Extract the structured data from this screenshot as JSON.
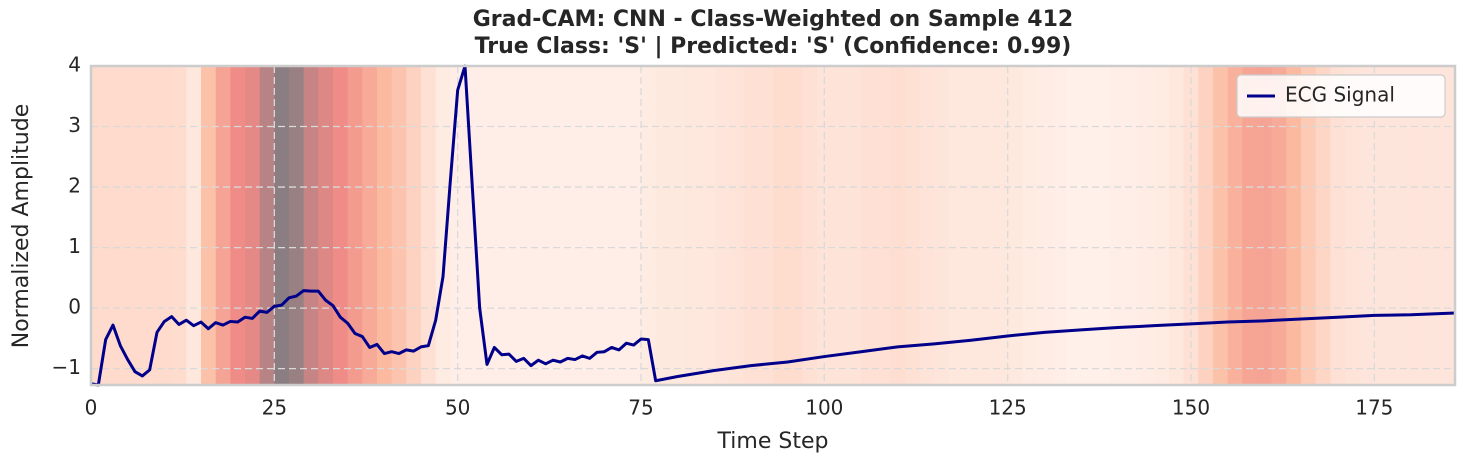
{
  "chart_data": {
    "type": "line",
    "title": "Grad-CAM: CNN - Class-Weighted on Sample 412",
    "subtitle": "True Class: 'S' | Predicted: 'S' (Confidence: 0.99)",
    "x_label": "Time Step",
    "y_label": "Normalized Amplitude",
    "xlim": [
      0,
      186
    ],
    "xticks": [
      0,
      25,
      50,
      75,
      100,
      125,
      150,
      175
    ],
    "ylim": [
      -1.27,
      4
    ],
    "yticks": [
      {
        "value": -1,
        "label": "−1"
      },
      0,
      1,
      2,
      3,
      4
    ],
    "grid": true,
    "legend": "upper right",
    "series": [
      {
        "name": "ECG Signal",
        "color": "#00008b",
        "x": [
          0,
          1,
          2,
          3,
          4,
          5,
          6,
          7,
          8,
          9,
          10,
          11,
          12,
          13,
          14,
          15,
          16,
          17,
          18,
          19,
          20,
          21,
          22,
          23,
          24,
          25,
          26,
          27,
          28,
          29,
          30,
          31,
          32,
          33,
          34,
          35,
          36,
          37,
          38,
          39,
          40,
          41,
          42,
          43,
          44,
          45,
          46,
          47,
          48,
          49,
          50,
          51,
          52,
          53,
          54,
          55,
          56,
          57,
          58,
          59,
          60,
          61,
          62,
          63,
          64,
          65,
          66,
          67,
          68,
          69,
          70,
          71,
          72,
          73,
          74,
          75,
          76,
          77,
          80,
          85,
          90,
          95,
          100,
          105,
          110,
          115,
          120,
          125,
          130,
          135,
          140,
          145,
          150,
          155,
          160,
          165,
          170,
          175,
          180,
          186
        ],
        "values": [
          -1.25,
          -1.27,
          -0.52,
          -0.28,
          -0.62,
          -0.85,
          -1.05,
          -1.12,
          -1.02,
          -0.4,
          -0.22,
          -0.14,
          -0.27,
          -0.2,
          -0.29,
          -0.23,
          -0.34,
          -0.24,
          -0.28,
          -0.22,
          -0.23,
          -0.15,
          -0.17,
          -0.05,
          -0.07,
          0.03,
          0.05,
          0.17,
          0.2,
          0.29,
          0.28,
          0.28,
          0.13,
          0.04,
          -0.15,
          -0.25,
          -0.42,
          -0.47,
          -0.65,
          -0.6,
          -0.75,
          -0.72,
          -0.75,
          -0.69,
          -0.71,
          -0.64,
          -0.62,
          -0.2,
          0.52,
          2.1,
          3.6,
          4.0,
          2.0,
          0.0,
          -0.93,
          -0.65,
          -0.77,
          -0.76,
          -0.88,
          -0.83,
          -0.95,
          -0.86,
          -0.92,
          -0.86,
          -0.89,
          -0.83,
          -0.85,
          -0.79,
          -0.83,
          -0.73,
          -0.72,
          -0.65,
          -0.69,
          -0.58,
          -0.61,
          -0.51,
          -0.52,
          -1.2,
          -1.13,
          -1.03,
          -0.95,
          -0.89,
          -0.8,
          -0.72,
          -0.64,
          -0.59,
          -0.53,
          -0.46,
          -0.4,
          -0.36,
          -0.32,
          -0.29,
          -0.26,
          -0.23,
          -0.21,
          -0.18,
          -0.15,
          -0.12,
          -0.11,
          -0.08
        ]
      }
    ],
    "heatmap": {
      "colormap": [
        "#fff5f0",
        "#fcbba1",
        "#ee8a86",
        "#8a7e82"
      ],
      "x": [
        0,
        2,
        4,
        6,
        8,
        10,
        12,
        14,
        16,
        18,
        20,
        22,
        24,
        26,
        28,
        30,
        32,
        34,
        36,
        38,
        40,
        42,
        44,
        46,
        48,
        50,
        52,
        54,
        56,
        58,
        60,
        62,
        64,
        66,
        68,
        70,
        72,
        74,
        76,
        78,
        80,
        82,
        84,
        86,
        88,
        90,
        92,
        94,
        96,
        98,
        100,
        102,
        104,
        106,
        108,
        110,
        112,
        114,
        116,
        118,
        120,
        122,
        124,
        126,
        128,
        130,
        132,
        134,
        136,
        138,
        140,
        142,
        144,
        146,
        148,
        150,
        152,
        154,
        156,
        158,
        160,
        162,
        164,
        166,
        168,
        170,
        172,
        174,
        176,
        178,
        180,
        182,
        184,
        186
      ],
      "values": [
        0.15,
        0.15,
        0.15,
        0.15,
        0.15,
        0.15,
        0.14,
        0.08,
        0.3,
        0.5,
        0.65,
        0.7,
        0.85,
        1.0,
        0.95,
        0.8,
        0.72,
        0.65,
        0.55,
        0.45,
        0.35,
        0.28,
        0.2,
        0.12,
        0.06,
        0.04,
        0.04,
        0.04,
        0.04,
        0.04,
        0.04,
        0.04,
        0.04,
        0.04,
        0.04,
        0.04,
        0.04,
        0.04,
        0.06,
        0.07,
        0.07,
        0.08,
        0.08,
        0.09,
        0.1,
        0.12,
        0.12,
        0.14,
        0.14,
        0.12,
        0.1,
        0.1,
        0.1,
        0.12,
        0.12,
        0.13,
        0.12,
        0.1,
        0.09,
        0.08,
        0.08,
        0.08,
        0.08,
        0.07,
        0.06,
        0.05,
        0.04,
        0.03,
        0.03,
        0.03,
        0.04,
        0.04,
        0.05,
        0.06,
        0.08,
        0.12,
        0.2,
        0.3,
        0.4,
        0.48,
        0.5,
        0.45,
        0.35,
        0.25,
        0.18,
        0.12,
        0.1,
        0.09,
        0.09,
        0.09,
        0.09,
        0.09,
        0.09,
        0.09
      ]
    }
  }
}
